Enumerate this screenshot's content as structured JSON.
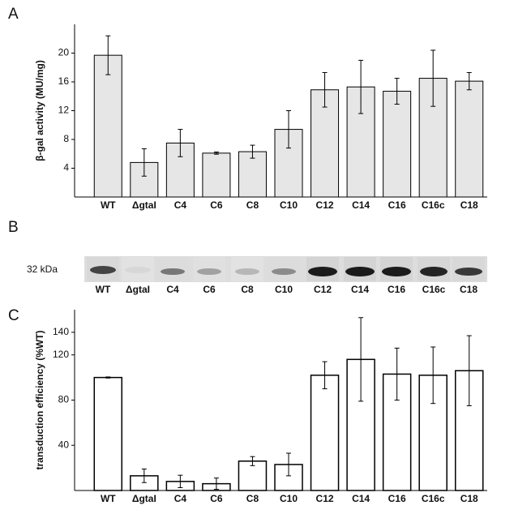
{
  "panel_labels": [
    "A",
    "B",
    "C"
  ],
  "chart_data": [
    {
      "type": "bar",
      "y_label": "β-gal activity (MU/mg)",
      "categories": [
        "WT",
        "ΔgtaI",
        "C4",
        "C6",
        "C8",
        "C10",
        "C12",
        "C14",
        "C16",
        "C16c",
        "C18"
      ],
      "series": [
        {
          "color": "#e6e6e6",
          "values": [
            19.7,
            4.8,
            7.5,
            6.1,
            6.3,
            9.4,
            14.9,
            15.3,
            14.7,
            16.5,
            16.1
          ],
          "errors": [
            2.7,
            1.9,
            1.9,
            0.15,
            0.9,
            2.6,
            2.4,
            3.7,
            1.8,
            3.9,
            1.2
          ]
        }
      ],
      "ylim": [
        0,
        24
      ],
      "yticks": [
        4,
        8,
        12,
        16,
        20
      ]
    },
    {
      "type": "bar",
      "y_label": "transduction efficiency (%WT)",
      "categories": [
        "WT",
        "ΔgtaI",
        "C4",
        "C6",
        "C8",
        "C10",
        "C12",
        "C14",
        "C16",
        "C16c",
        "C18"
      ],
      "series": [
        {
          "color": "#ffffff",
          "values": [
            100,
            13,
            8,
            6,
            26,
            23,
            102,
            116,
            103,
            102,
            106
          ],
          "errors": [
            0.5,
            6,
            5.5,
            5,
            4,
            10,
            12,
            37,
            23,
            25,
            31
          ]
        }
      ],
      "ylim": [
        0,
        160
      ],
      "yticks": [
        40,
        80,
        120,
        140
      ]
    }
  ],
  "blot": {
    "marker": "32 kDa",
    "lanes": [
      "WT",
      "ΔgtaI",
      "C4",
      "C6",
      "C8",
      "C10",
      "C12",
      "C14",
      "C16",
      "C16c",
      "C18"
    ]
  }
}
